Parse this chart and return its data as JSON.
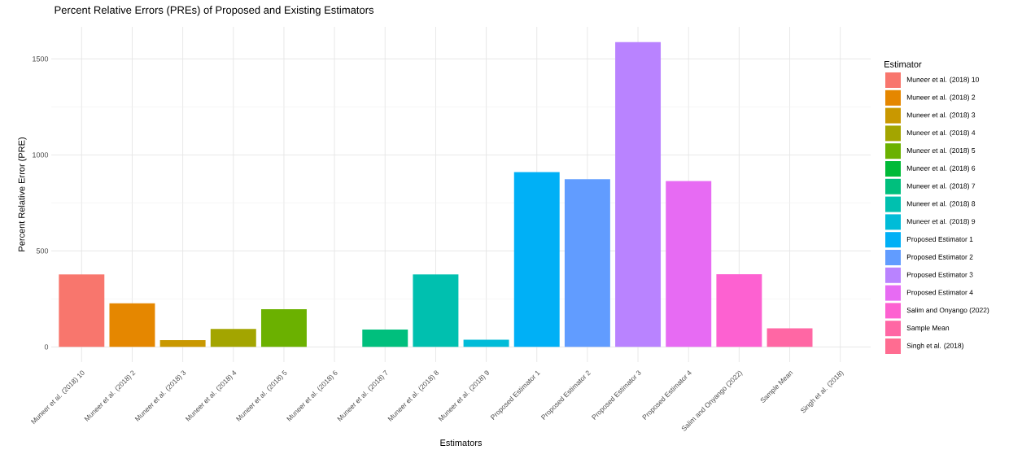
{
  "chart_data": {
    "type": "bar",
    "title": "Percent Relative Errors (PREs) of Proposed and Existing Estimators",
    "xlabel": "Estimators",
    "ylabel": "Percent Relative Error (PRE)",
    "legend_title": "Estimator",
    "categories": [
      "Muneer et al. (2018)  10",
      "Muneer et al. (2018)  2",
      "Muneer et al. (2018)  3",
      "Muneer et al. (2018)  4",
      "Muneer et al. (2018)  5",
      "Muneer et al. (2018)  6",
      "Muneer et al. (2018)  7",
      "Muneer et al. (2018)  8",
      "Muneer et al. (2018)  9",
      "Proposed Estimator 1",
      "Proposed Estimator 2",
      "Proposed Estimator 3",
      "Proposed Estimator 4",
      "Salim and Onyango (2022)",
      "Sample Mean",
      "Singh et al. (2018)"
    ],
    "series": [
      {
        "name": "Muneer et al. (2018)  10",
        "color": "#f8766d",
        "values": [
          378,
          null,
          null,
          null,
          null,
          null,
          null,
          null,
          null,
          null,
          null,
          null,
          null,
          null,
          null,
          null
        ]
      },
      {
        "name": "Muneer et al. (2018)  2",
        "color": "#e58700",
        "values": [
          null,
          227,
          null,
          null,
          null,
          null,
          null,
          null,
          null,
          null,
          null,
          null,
          null,
          null,
          null,
          null
        ]
      },
      {
        "name": "Muneer et al. (2018)  3",
        "color": "#c99800",
        "values": [
          null,
          null,
          35,
          null,
          null,
          null,
          null,
          null,
          null,
          null,
          null,
          null,
          null,
          null,
          null,
          null
        ]
      },
      {
        "name": "Muneer et al. (2018)  4",
        "color": "#a3a500",
        "values": [
          null,
          null,
          null,
          94,
          null,
          null,
          null,
          null,
          null,
          null,
          null,
          null,
          null,
          null,
          null,
          null
        ]
      },
      {
        "name": "Muneer et al. (2018)  5",
        "color": "#6bb100",
        "values": [
          null,
          null,
          null,
          null,
          196,
          null,
          null,
          null,
          null,
          null,
          null,
          null,
          null,
          null,
          null,
          null
        ]
      },
      {
        "name": "Muneer et al. (2018)  6",
        "color": "#00ba38",
        "values": [
          null,
          null,
          null,
          null,
          null,
          0,
          null,
          null,
          null,
          null,
          null,
          null,
          null,
          null,
          null,
          null
        ]
      },
      {
        "name": "Muneer et al. (2018)  7",
        "color": "#00bf7d",
        "values": [
          null,
          null,
          null,
          null,
          null,
          null,
          90,
          null,
          null,
          null,
          null,
          null,
          null,
          null,
          null,
          null
        ]
      },
      {
        "name": "Muneer et al. (2018)  8",
        "color": "#00c0af",
        "values": [
          null,
          null,
          null,
          null,
          null,
          null,
          null,
          378,
          null,
          null,
          null,
          null,
          null,
          null,
          null,
          null
        ]
      },
      {
        "name": "Muneer et al. (2018)  9",
        "color": "#00bcd8",
        "values": [
          null,
          null,
          null,
          null,
          null,
          null,
          null,
          null,
          38,
          null,
          null,
          null,
          null,
          null,
          null,
          null
        ]
      },
      {
        "name": "Proposed Estimator 1",
        "color": "#00b0f6",
        "values": [
          null,
          null,
          null,
          null,
          null,
          null,
          null,
          null,
          null,
          911,
          null,
          null,
          null,
          null,
          null,
          null
        ]
      },
      {
        "name": "Proposed Estimator 2",
        "color": "#619cff",
        "values": [
          null,
          null,
          null,
          null,
          null,
          null,
          null,
          null,
          null,
          null,
          873,
          null,
          null,
          null,
          null,
          null
        ]
      },
      {
        "name": "Proposed Estimator 3",
        "color": "#b983ff",
        "values": [
          null,
          null,
          null,
          null,
          null,
          null,
          null,
          null,
          null,
          null,
          null,
          1588,
          null,
          null,
          null,
          null
        ]
      },
      {
        "name": "Proposed Estimator 4",
        "color": "#e76bf3",
        "values": [
          null,
          null,
          null,
          null,
          null,
          null,
          null,
          null,
          null,
          null,
          null,
          null,
          864,
          null,
          null,
          null
        ]
      },
      {
        "name": "Salim and Onyango (2022)",
        "color": "#fd61d1",
        "values": [
          null,
          null,
          null,
          null,
          null,
          null,
          null,
          null,
          null,
          null,
          null,
          null,
          null,
          379,
          null,
          null
        ]
      },
      {
        "name": "Sample Mean",
        "color": "#ff67a4",
        "values": [
          null,
          null,
          null,
          null,
          null,
          null,
          null,
          null,
          null,
          null,
          null,
          null,
          null,
          null,
          97,
          null
        ]
      },
      {
        "name": "Singh et al. (2018)",
        "color": "#ff6c91",
        "values": [
          null,
          null,
          null,
          null,
          null,
          null,
          null,
          null,
          null,
          null,
          null,
          null,
          null,
          null,
          null,
          0
        ]
      }
    ],
    "ylim": [
      -79,
      1667
    ],
    "yticks": [
      0,
      {
        "value": 250,
        "label": null
      },
      500,
      {
        "value": 750,
        "label": null
      },
      1000,
      {
        "value": 1250,
        "label": null
      },
      1500
    ],
    "grid": true,
    "legend": "right"
  }
}
